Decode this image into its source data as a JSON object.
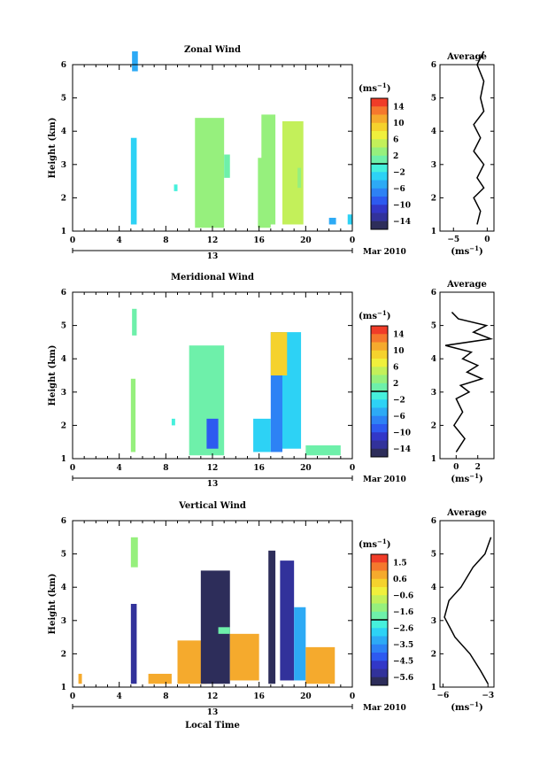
{
  "panels": [
    {
      "title": "Zonal Wind",
      "ylabel": "Height (km)",
      "unit": "(ms",
      "unit_exp": "−1",
      "colorbar_labels": [
        "14",
        "10",
        "6",
        "2",
        "−2",
        "−6",
        "−10",
        "−14"
      ],
      "date_label": "Mar 2010",
      "day_label": "13",
      "avg_title": "Average",
      "avg_unit": "(ms",
      "avg_xticks": [
        "−5",
        "0"
      ]
    },
    {
      "title": "Meridional Wind",
      "ylabel": "Height (km)",
      "unit": "(ms",
      "unit_exp": "−1",
      "colorbar_labels": [
        "14",
        "10",
        "6",
        "2",
        "−2",
        "−6",
        "−10",
        "−14"
      ],
      "date_label": "Mar 2010",
      "day_label": "13",
      "avg_title": "Average",
      "avg_unit": "(ms",
      "avg_xticks": [
        "0",
        "2"
      ]
    },
    {
      "title": "Vertical Wind",
      "ylabel": "Height (km)",
      "unit": "(ms",
      "unit_exp": "−1",
      "colorbar_labels": [
        "1.5",
        "0.6",
        "−0.6",
        "−1.6",
        "−2.6",
        "−3.5",
        "−4.5",
        "−5.6"
      ],
      "date_label": "Mar 2010",
      "day_label": "13",
      "avg_title": "Average",
      "avg_unit": "(ms",
      "avg_xticks": [
        "−6",
        "−3"
      ]
    }
  ],
  "xlabel": "Local Time",
  "x_ticks": [
    "0",
    "4",
    "8",
    "12",
    "16",
    "20",
    "0"
  ],
  "y_ticks": [
    "1",
    "2",
    "3",
    "4",
    "5",
    "6"
  ],
  "colors": {
    "scale": [
      "#f03c28",
      "#f5782d",
      "#f5aa2d",
      "#f5d22d",
      "#f0f03c",
      "#c3f05a",
      "#96f07d",
      "#6ef0aa",
      "#46f0dc",
      "#2dd2f5",
      "#2daaf5",
      "#2d82f5",
      "#2d5af0",
      "#3237c8",
      "#32329b",
      "#2d2d5a"
    ]
  },
  "chart_data": [
    {
      "type": "heatmap",
      "title": "Zonal Wind",
      "xlabel": "Local Time",
      "ylabel": "Height (km)",
      "xlim": [
        0,
        24
      ],
      "ylim": [
        1,
        6
      ],
      "color_range": [
        -14,
        14
      ],
      "patches": [
        {
          "t": [
            5.1,
            5.6
          ],
          "h": [
            5.8,
            6.4
          ],
          "v": -4
        },
        {
          "t": [
            5.0,
            5.5
          ],
          "h": [
            1.2,
            3.8
          ],
          "v": -2
        },
        {
          "t": [
            8.7,
            9.0
          ],
          "h": [
            2.2,
            2.4
          ],
          "v": 0
        },
        {
          "t": [
            10.5,
            13.0
          ],
          "h": [
            1.1,
            4.4
          ],
          "v": 2
        },
        {
          "t": [
            13.0,
            13.5
          ],
          "h": [
            2.6,
            3.3
          ],
          "v": 1
        },
        {
          "t": [
            15.9,
            17.0
          ],
          "h": [
            1.1,
            3.2
          ],
          "v": 3
        },
        {
          "t": [
            16.2,
            17.4
          ],
          "h": [
            1.2,
            4.5
          ],
          "v": 2
        },
        {
          "t": [
            18.0,
            19.8
          ],
          "h": [
            1.2,
            4.3
          ],
          "v": 5
        },
        {
          "t": [
            19.3,
            19.6
          ],
          "h": [
            2.3,
            2.9
          ],
          "v": 3
        },
        {
          "t": [
            22.0,
            22.6
          ],
          "h": [
            1.2,
            1.4
          ],
          "v": -4
        },
        {
          "t": [
            23.6,
            24.0
          ],
          "h": [
            1.2,
            1.5
          ],
          "v": -3
        }
      ],
      "average": {
        "xlim": [
          -7,
          1
        ],
        "x": [
          -1.5,
          -1,
          -2,
          -0.5,
          -1.5,
          -0.5,
          -2,
          -1,
          -2,
          -0.5,
          -1,
          -0.5,
          -1.5,
          -0.5
        ],
        "heights": [
          1.2,
          1.6,
          2.0,
          2.3,
          2.6,
          3.0,
          3.4,
          3.8,
          4.2,
          4.6,
          5.0,
          5.5,
          6.0,
          6.4
        ]
      }
    },
    {
      "type": "heatmap",
      "title": "Meridional Wind",
      "xlabel": "Local Time",
      "ylabel": "Height (km)",
      "xlim": [
        0,
        24
      ],
      "ylim": [
        1,
        6
      ],
      "color_range": [
        -14,
        14
      ],
      "patches": [
        {
          "t": [
            5.1,
            5.5
          ],
          "h": [
            4.7,
            5.5
          ],
          "v": 1
        },
        {
          "t": [
            5.0,
            5.4
          ],
          "h": [
            1.2,
            3.4
          ],
          "v": 2
        },
        {
          "t": [
            8.5,
            8.8
          ],
          "h": [
            2.0,
            2.2
          ],
          "v": 0
        },
        {
          "t": [
            10.0,
            13.0
          ],
          "h": [
            1.1,
            4.4
          ],
          "v": 1
        },
        {
          "t": [
            11.5,
            12.5
          ],
          "h": [
            1.3,
            2.2
          ],
          "v": -8
        },
        {
          "t": [
            15.5,
            17.0
          ],
          "h": [
            1.2,
            2.2
          ],
          "v": -2
        },
        {
          "t": [
            17.0,
            18.0
          ],
          "h": [
            1.2,
            4.8
          ],
          "v": -6
        },
        {
          "t": [
            18.0,
            19.6
          ],
          "h": [
            1.3,
            4.8
          ],
          "v": -3
        },
        {
          "t": [
            17.0,
            18.4
          ],
          "h": [
            3.5,
            4.8
          ],
          "v": 8
        },
        {
          "t": [
            20.0,
            23.0
          ],
          "h": [
            1.1,
            1.4
          ],
          "v": 1
        }
      ],
      "average": {
        "xlim": [
          -1.5,
          3.5
        ],
        "x": [
          0,
          0.8,
          -0.2,
          0.6,
          0,
          1.2,
          0.4,
          2.4,
          1.0,
          2.0,
          0.6,
          1.4,
          -1.0,
          3.2,
          1.6,
          2.8,
          0.2,
          -0.4
        ],
        "heights": [
          1.2,
          1.6,
          2.0,
          2.4,
          2.8,
          3.0,
          3.2,
          3.4,
          3.6,
          3.8,
          4.0,
          4.2,
          4.4,
          4.6,
          4.8,
          5.0,
          5.2,
          5.4
        ]
      }
    },
    {
      "type": "heatmap",
      "title": "Vertical Wind",
      "xlabel": "Local Time",
      "ylabel": "Height (km)",
      "xlim": [
        0,
        24
      ],
      "ylim": [
        1,
        6
      ],
      "color_range": [
        -5.6,
        1.5
      ],
      "patches": [
        {
          "t": [
            5.0,
            5.6
          ],
          "h": [
            4.6,
            5.5
          ],
          "v": -1.2
        },
        {
          "t": [
            5.0,
            5.5
          ],
          "h": [
            1.1,
            3.5
          ],
          "v": -5.0
        },
        {
          "t": [
            0.5,
            0.8
          ],
          "h": [
            1.1,
            1.4
          ],
          "v": 0.4
        },
        {
          "t": [
            6.5,
            8.5
          ],
          "h": [
            1.1,
            1.4
          ],
          "v": 0.4
        },
        {
          "t": [
            9.0,
            11.5
          ],
          "h": [
            1.1,
            2.4
          ],
          "v": 0.3
        },
        {
          "t": [
            11.0,
            13.5
          ],
          "h": [
            1.1,
            4.5
          ],
          "v": -5.2
        },
        {
          "t": [
            12.5,
            13.5
          ],
          "h": [
            2.6,
            2.8
          ],
          "v": -2.0
        },
        {
          "t": [
            13.5,
            16.0
          ],
          "h": [
            1.2,
            2.6
          ],
          "v": 0.3
        },
        {
          "t": [
            16.8,
            17.4
          ],
          "h": [
            1.1,
            5.1
          ],
          "v": -5.4
        },
        {
          "t": [
            17.8,
            19.0
          ],
          "h": [
            1.2,
            4.8
          ],
          "v": -5.0
        },
        {
          "t": [
            19.0,
            20.0
          ],
          "h": [
            1.2,
            3.4
          ],
          "v": -3.0
        },
        {
          "t": [
            20.0,
            22.5
          ],
          "h": [
            1.1,
            2.2
          ],
          "v": 0.4
        }
      ],
      "average": {
        "xlim": [
          -6.2,
          -2.6
        ],
        "x": [
          -3.0,
          -3.5,
          -4.2,
          -5.2,
          -5.9,
          -5.6,
          -4.8,
          -4.0,
          -3.2,
          -2.8
        ],
        "heights": [
          1.1,
          1.5,
          2.0,
          2.5,
          3.1,
          3.6,
          4.0,
          4.6,
          5.0,
          5.5
        ]
      }
    }
  ]
}
